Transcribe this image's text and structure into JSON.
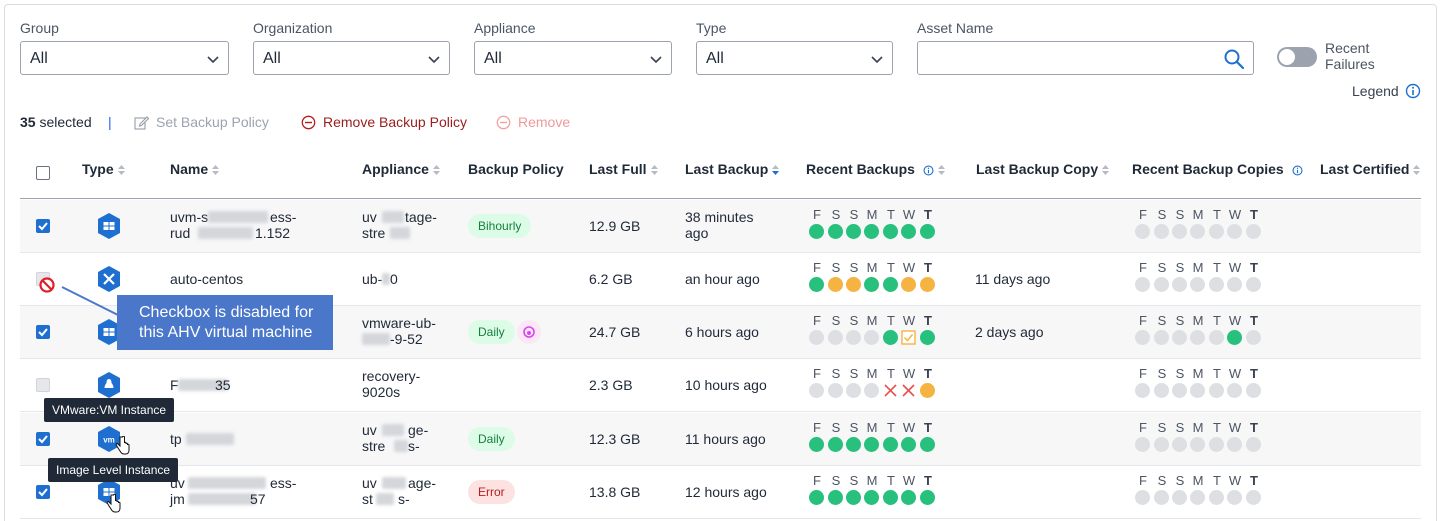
{
  "filters": {
    "group": {
      "label": "Group",
      "value": "All"
    },
    "organization": {
      "label": "Organization",
      "value": "All"
    },
    "appliance": {
      "label": "Appliance",
      "value": "All"
    },
    "type": {
      "label": "Type",
      "value": "All"
    },
    "asset_name": {
      "label": "Asset Name",
      "value": ""
    },
    "recent_failures": {
      "label": "Recent Failures",
      "on": false
    }
  },
  "legend_label": "Legend",
  "actions": {
    "selected_count": "35",
    "selected_suffix": " selected",
    "separator": "|",
    "set_policy": "Set Backup Policy",
    "remove_policy": "Remove Backup Policy",
    "remove": "Remove"
  },
  "columns": {
    "type": "Type",
    "name": "Name",
    "appliance": "Appliance",
    "backup_policy": "Backup Policy",
    "last_full": "Last Full",
    "last_backup": "Last Backup",
    "recent_backups": "Recent Backups",
    "last_backup_copy": "Last Backup Copy",
    "recent_backup_copies": "Recent Backup Copies",
    "last_certified": "Last Certified"
  },
  "day_letters": [
    "F",
    "S",
    "S",
    "M",
    "T",
    "W",
    "T"
  ],
  "status_colors": {
    "success": "#27c07d",
    "warning": "#f5b342",
    "none": "#dedfe2",
    "failed": "#e8504f"
  },
  "rows": [
    {
      "checkbox": "checked",
      "type_icon": "windows-icon",
      "name_l1": "uvm-s",
      "name_l1b": "ess-",
      "name_l2": "rud",
      "name_l2b": "1.152",
      "app_l1": "uv",
      "app_l1b": "tage-",
      "app_l2": "stre",
      "policy": "Bihourly",
      "policy_style": "green",
      "last_full": "12.9 GB",
      "last_backup_l1": "38 minutes",
      "last_backup_l2": "ago",
      "backups": [
        "success",
        "success",
        "success",
        "success",
        "success",
        "success",
        "success"
      ],
      "copy": "",
      "copies": [
        "none",
        "none",
        "none",
        "none",
        "none",
        "none",
        "none"
      ]
    },
    {
      "checkbox": "disabled",
      "type_icon": "ahv-icon",
      "name_l1": "auto-centos",
      "app_l1": "ub-",
      "app_l1b": "0",
      "policy": "",
      "last_full": "6.2 GB",
      "last_backup_l1": "an hour ago",
      "backups": [
        "success",
        "warning",
        "warning",
        "success",
        "success",
        "warning",
        "warning"
      ],
      "copy": "11 days ago",
      "copies": [
        "none",
        "none",
        "none",
        "none",
        "none",
        "none",
        "none"
      ]
    },
    {
      "checkbox": "checked",
      "type_icon": "windows-icon",
      "name_l1": "",
      "app_l1": "vmware-ub-",
      "app_l2b": "-9-52",
      "policy": "Daily",
      "policy_style": "green",
      "last_full": "24.7 GB",
      "last_backup_l1": "6 hours ago",
      "backups": [
        "none",
        "none",
        "none",
        "none",
        "success",
        "check",
        "success"
      ],
      "copy": "2 days ago",
      "copies": [
        "none",
        "none",
        "none",
        "none",
        "none",
        "success",
        "none"
      ]
    },
    {
      "checkbox": "disabled",
      "type_icon": "linux-icon",
      "name_l1": "F",
      "name_l1b": "35",
      "app_l1": "recovery-",
      "app_l2": "9020s",
      "policy": "",
      "last_full": "2.3 GB",
      "last_backup_l1": "10 hours ago",
      "backups": [
        "none",
        "none",
        "none",
        "none",
        "failed",
        "failed",
        "warning"
      ],
      "copy": "",
      "copies": [
        "none",
        "none",
        "none",
        "none",
        "none",
        "none",
        "none"
      ]
    },
    {
      "checkbox": "checked",
      "type_icon": "vm-icon",
      "name_l1": "tp",
      "app_l1": "uv",
      "app_l1b": "ge-",
      "app_l2": "stre",
      "app_l2b": "s-",
      "policy": "Daily",
      "policy_style": "green",
      "last_full": "12.3 GB",
      "last_backup_l1": "11 hours ago",
      "backups": [
        "success",
        "success",
        "success",
        "success",
        "success",
        "success",
        "success"
      ],
      "copy": "",
      "copies": [
        "none",
        "none",
        "none",
        "none",
        "none",
        "none",
        "none"
      ]
    },
    {
      "checkbox": "checked",
      "type_icon": "windows-icon",
      "name_l1": "uv",
      "name_l1b": "ess-",
      "name_l2": "jm",
      "name_l2b": "57",
      "app_l1": "uv",
      "app_l1b": "age-",
      "app_l2": "st",
      "app_l2b": "s-",
      "policy": "Error",
      "policy_style": "red",
      "last_full": "13.8 GB",
      "last_backup_l1": "12 hours ago",
      "backups": [
        "success",
        "success",
        "success",
        "success",
        "success",
        "success",
        "success"
      ],
      "copy": "",
      "copies": [
        "none",
        "none",
        "none",
        "none",
        "none",
        "none",
        "none"
      ]
    }
  ],
  "callout": "Checkbox is disabled for this AHV virtual machine",
  "tooltips": {
    "vm_instance": "VMware:VM Instance",
    "image_instance": "Image Level Instance"
  }
}
